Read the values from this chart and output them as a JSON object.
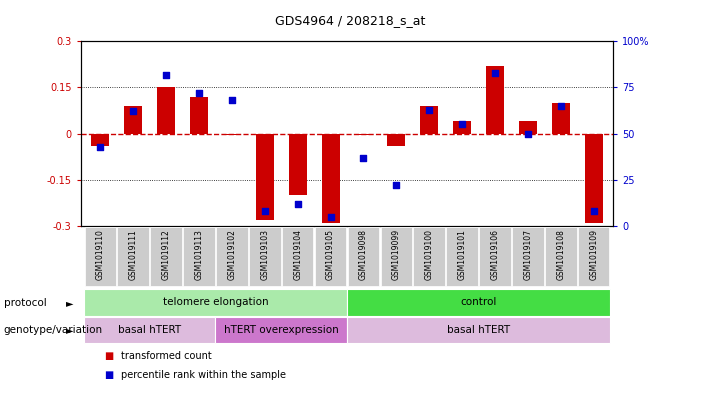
{
  "title": "GDS4964 / 208218_s_at",
  "samples": [
    "GSM1019110",
    "GSM1019111",
    "GSM1019112",
    "GSM1019113",
    "GSM1019102",
    "GSM1019103",
    "GSM1019104",
    "GSM1019105",
    "GSM1019098",
    "GSM1019099",
    "GSM1019100",
    "GSM1019101",
    "GSM1019106",
    "GSM1019107",
    "GSM1019108",
    "GSM1019109"
  ],
  "transformed_count": [
    -0.04,
    0.09,
    0.15,
    0.12,
    -0.005,
    -0.28,
    -0.2,
    -0.29,
    -0.005,
    -0.04,
    0.09,
    0.04,
    0.22,
    0.04,
    0.1,
    -0.29
  ],
  "percentile_rank": [
    43,
    62,
    82,
    72,
    68,
    8,
    12,
    5,
    37,
    22,
    63,
    55,
    83,
    50,
    65,
    8
  ],
  "ylim_left": [
    -0.3,
    0.3
  ],
  "ylim_right": [
    0,
    100
  ],
  "yticks_left": [
    -0.3,
    -0.15,
    0,
    0.15,
    0.3
  ],
  "yticks_right": [
    0,
    25,
    50,
    75,
    100
  ],
  "bar_color": "#cc0000",
  "dot_color": "#0000cc",
  "zero_line_color": "#cc0000",
  "dotted_line_color": "#000000",
  "protocol_groups": [
    {
      "label": "telomere elongation",
      "start": 0,
      "end": 7,
      "color": "#aaeaaa"
    },
    {
      "label": "control",
      "start": 8,
      "end": 15,
      "color": "#44dd44"
    }
  ],
  "genotype_groups": [
    {
      "label": "basal hTERT",
      "start": 0,
      "end": 3,
      "color": "#ddbbdd"
    },
    {
      "label": "hTERT overexpression",
      "start": 4,
      "end": 7,
      "color": "#cc77cc"
    },
    {
      "label": "basal hTERT",
      "start": 8,
      "end": 15,
      "color": "#ddbbdd"
    }
  ],
  "legend_items": [
    {
      "color": "#cc0000",
      "label": "transformed count"
    },
    {
      "color": "#0000cc",
      "label": "percentile rank within the sample"
    }
  ],
  "protocol_label": "protocol",
  "genotype_label": "genotype/variation",
  "tick_bg_color": "#cccccc",
  "background_color": "#ffffff",
  "right_axis_color": "#0000cc",
  "left_axis_color": "#cc0000"
}
